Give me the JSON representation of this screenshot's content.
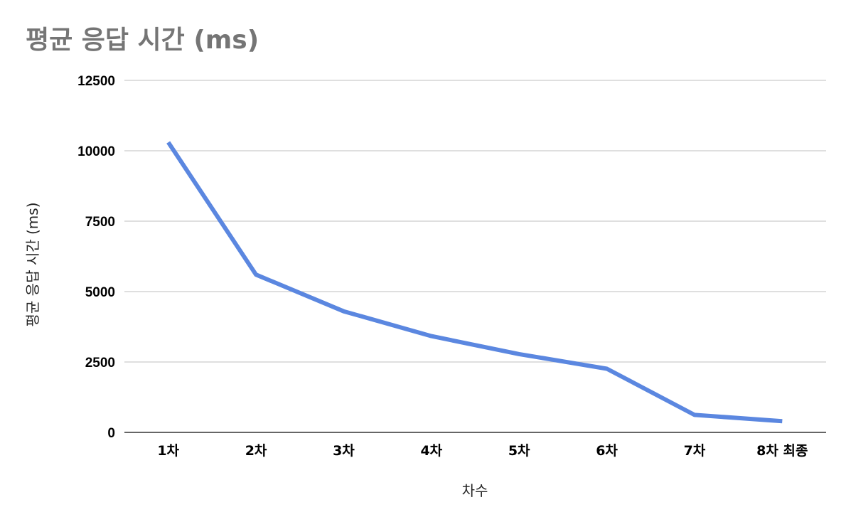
{
  "chart_data": {
    "type": "line",
    "title": "평균 응답 시간 (ms)",
    "xlabel": "차수",
    "ylabel": "평균 응답 시간 (ms)",
    "categories": [
      "1차",
      "2차",
      "3차",
      "4차",
      "5차",
      "6차",
      "7차",
      "8차 최종"
    ],
    "series": [
      {
        "values": [
          10300,
          5600,
          4300,
          3420,
          2780,
          2260,
          620,
          400
        ]
      }
    ],
    "ylim": [
      0,
      12500
    ],
    "yticks": [
      0,
      2500,
      5000,
      7500,
      10000,
      12500
    ],
    "grid": true,
    "legend": "none",
    "colors": {
      "series": "#5b87e0",
      "title": "#757575"
    }
  }
}
